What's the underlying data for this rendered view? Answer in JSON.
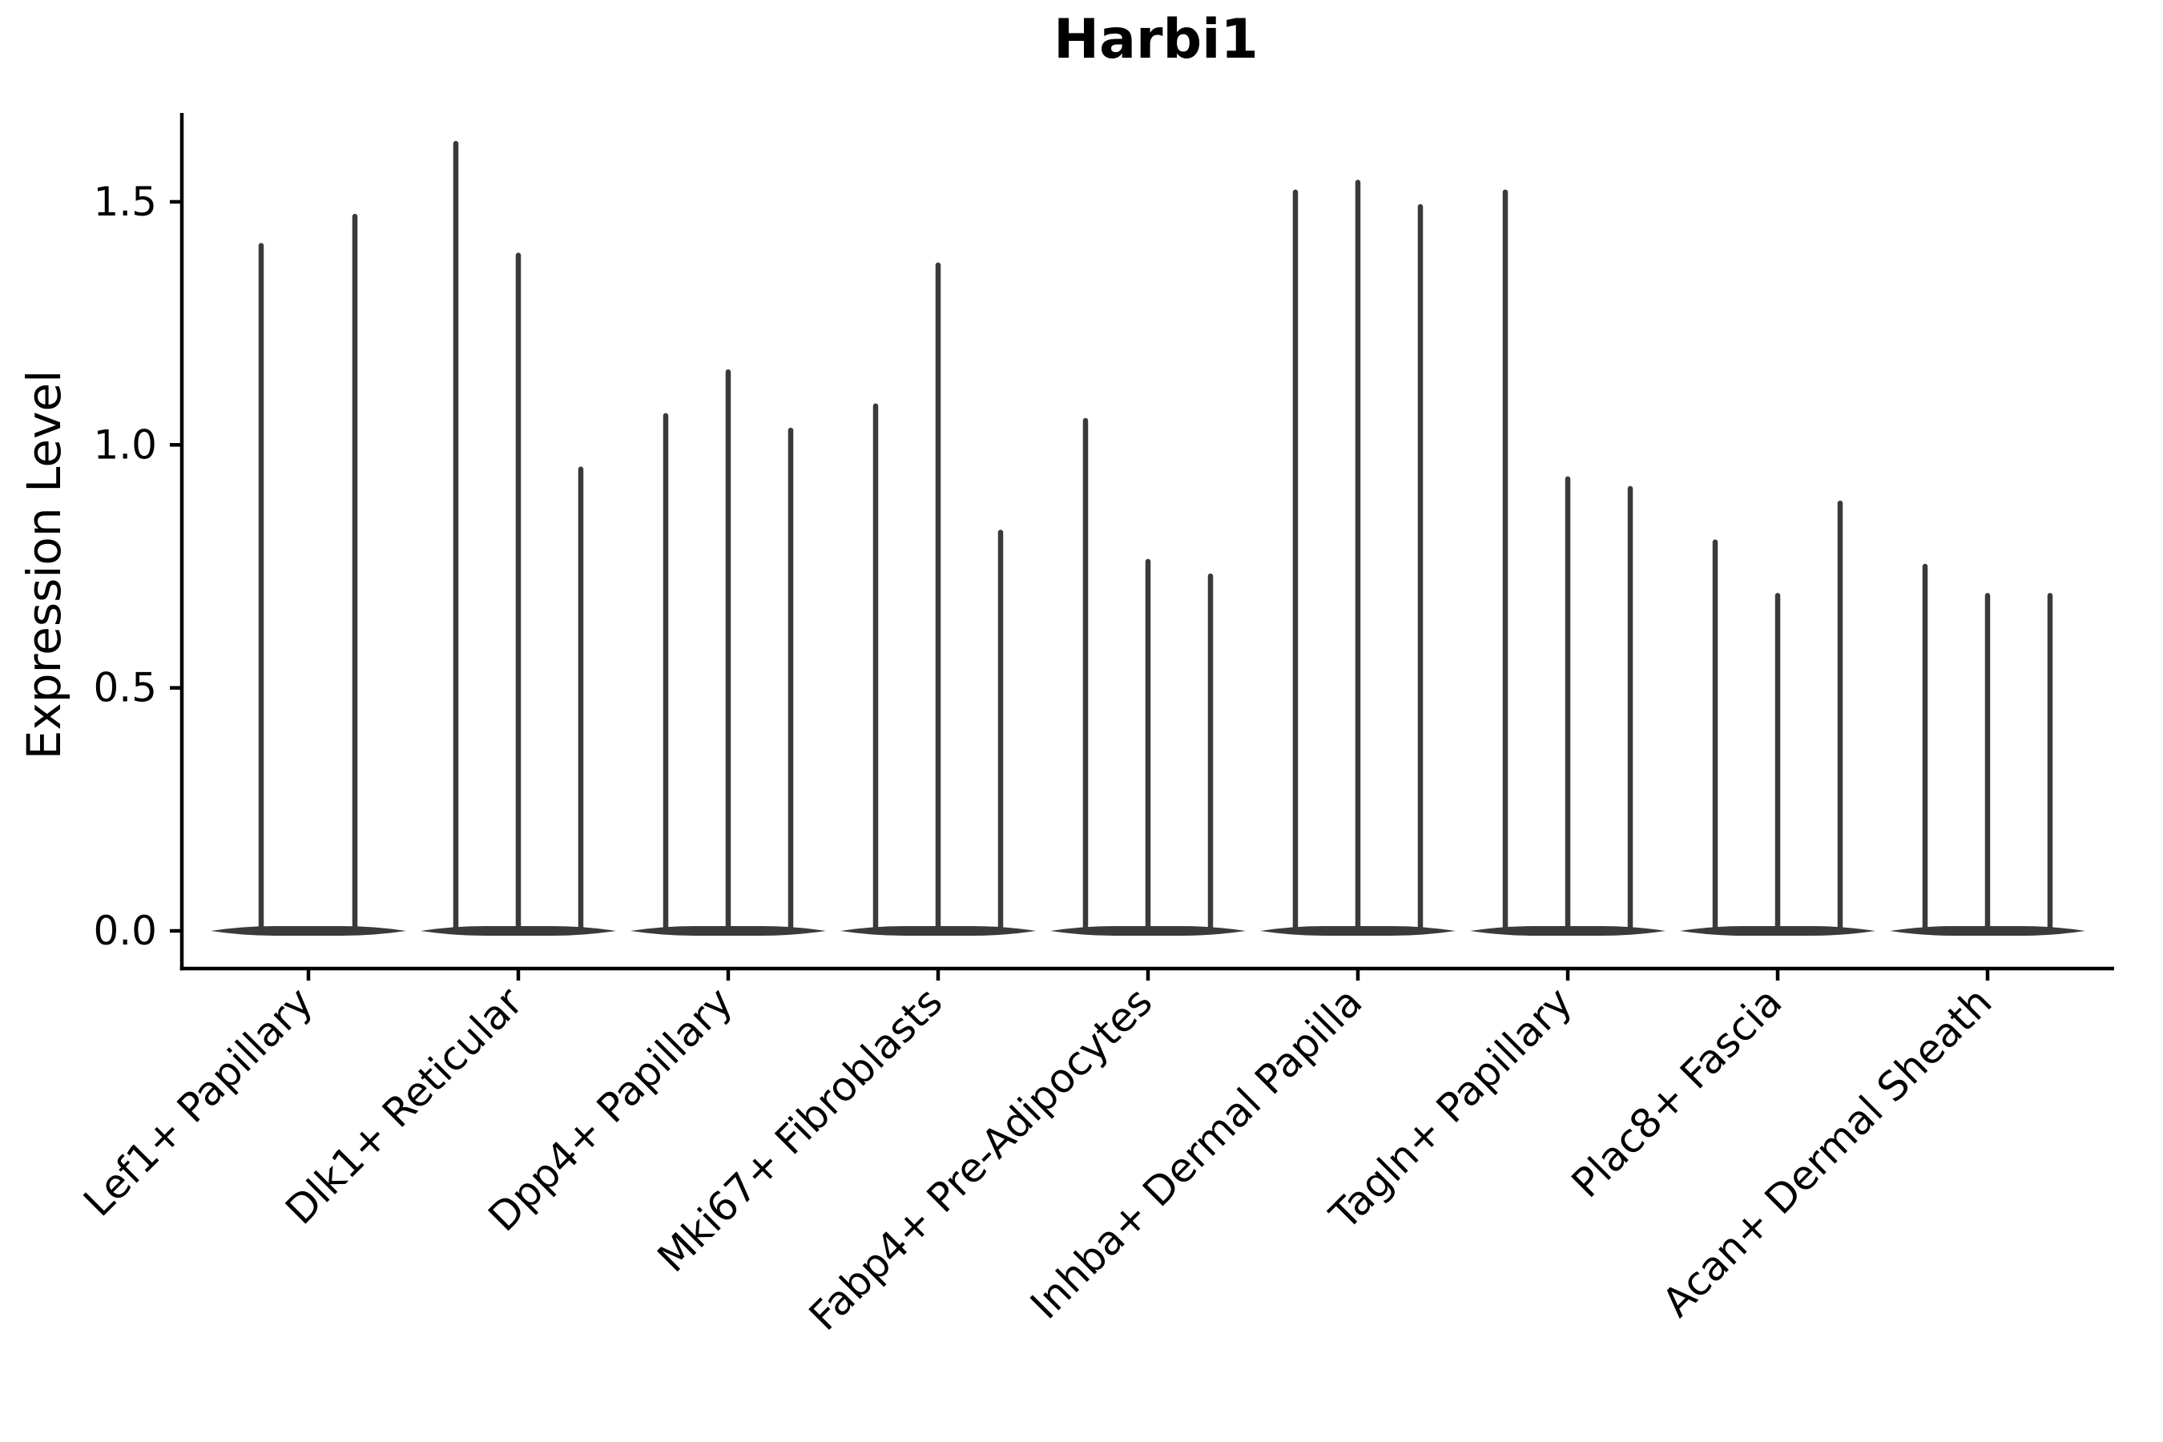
{
  "chart_data": {
    "type": "violin",
    "title": "Harbi1",
    "ylabel": "Expression Level",
    "xlabel": "",
    "ytick_labels": [
      "0.0",
      "0.5",
      "1.0",
      "1.5"
    ],
    "ylim": [
      -0.08,
      1.69
    ],
    "grid": false,
    "legend": "none",
    "categories": [
      "Lef1+ Papillary",
      "Dlk1+ Reticular",
      "Dpp4+ Papillary",
      "Mki67+ Fibroblasts",
      "Fabp4+ Pre-Adipocytes",
      "Inhba+ Dermal Papilla",
      "Tagln+ Papillary",
      "Plac8+ Fascia",
      "Acan+ Dermal Sheath"
    ],
    "groups": [
      {
        "category": "Lef1+ Papillary",
        "violins": [
          {
            "dx": -59,
            "max": 1.41
          },
          {
            "dx": 58,
            "max": 1.47
          }
        ]
      },
      {
        "category": "Dlk1+ Reticular",
        "violins": [
          {
            "dx": -78,
            "max": 1.62
          },
          {
            "dx": 0,
            "max": 1.39
          },
          {
            "dx": 78,
            "max": 0.95
          }
        ]
      },
      {
        "category": "Dpp4+ Papillary",
        "violins": [
          {
            "dx": -78,
            "max": 1.06
          },
          {
            "dx": 0,
            "max": 1.15
          },
          {
            "dx": 78,
            "max": 1.03
          }
        ]
      },
      {
        "category": "Mki67+ Fibroblasts",
        "violins": [
          {
            "dx": -78,
            "max": 1.08
          },
          {
            "dx": 0,
            "max": 1.37
          },
          {
            "dx": 78,
            "max": 0.82
          }
        ]
      },
      {
        "category": "Fabp4+ Pre-Adipocytes",
        "violins": [
          {
            "dx": -78,
            "max": 1.05
          },
          {
            "dx": 0,
            "max": 0.76
          },
          {
            "dx": 78,
            "max": 0.73
          }
        ]
      },
      {
        "category": "Inhba+ Dermal Papilla",
        "violins": [
          {
            "dx": -78,
            "max": 1.52
          },
          {
            "dx": 0,
            "max": 1.54
          },
          {
            "dx": 78,
            "max": 1.49
          }
        ]
      },
      {
        "category": "Tagln+ Papillary",
        "violins": [
          {
            "dx": -78,
            "max": 1.52
          },
          {
            "dx": 0,
            "max": 0.93
          },
          {
            "dx": 78,
            "max": 0.91
          }
        ]
      },
      {
        "category": "Plac8+ Fascia",
        "violins": [
          {
            "dx": -78,
            "max": 0.8
          },
          {
            "dx": 0,
            "max": 0.69
          },
          {
            "dx": 78,
            "max": 0.88
          }
        ]
      },
      {
        "category": "Acan+ Dermal Sheath",
        "violins": [
          {
            "dx": -78,
            "max": 0.75
          },
          {
            "dx": 0,
            "max": 0.69
          },
          {
            "dx": 78,
            "max": 0.69
          }
        ]
      }
    ],
    "colors": {
      "violin": "#3a3a3a",
      "axis": "#000000",
      "text": "#000000",
      "background": "#ffffff"
    }
  }
}
